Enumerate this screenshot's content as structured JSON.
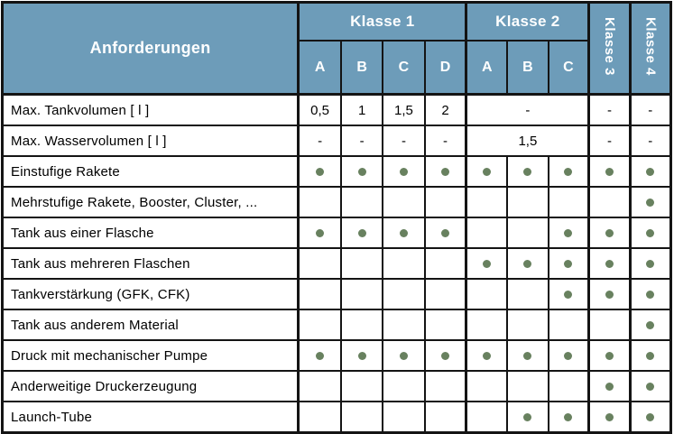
{
  "colors": {
    "header_bg": "#6D9CB9",
    "dot_green": "#68815F",
    "border": "#141414"
  },
  "table": {
    "corner_header": "Anforderungen",
    "groups": [
      {
        "label": "Klasse 1",
        "orientation": "horizontal",
        "subcols": [
          "A",
          "B",
          "C",
          "D"
        ]
      },
      {
        "label": "Klasse 2",
        "orientation": "horizontal",
        "subcols": [
          "A",
          "B",
          "C"
        ]
      },
      {
        "label": "Klasse 3",
        "orientation": "vertical",
        "subcols": []
      },
      {
        "label": "Klasse 4",
        "orientation": "vertical",
        "subcols": []
      }
    ],
    "rows": [
      {
        "label": "Max. Tankvolumen [ l ]",
        "cells": [
          {
            "v": "0,5"
          },
          {
            "v": "1"
          },
          {
            "v": "1,5"
          },
          {
            "v": "2"
          },
          {
            "v": "-",
            "span": 3
          },
          {
            "v": "-"
          },
          {
            "v": "-"
          }
        ]
      },
      {
        "label": "Max. Wasservolumen [ l ]",
        "cells": [
          {
            "v": "-"
          },
          {
            "v": "-"
          },
          {
            "v": "-"
          },
          {
            "v": "-"
          },
          {
            "v": "1,5",
            "span": 3
          },
          {
            "v": "-"
          },
          {
            "v": "-"
          }
        ]
      },
      {
        "label": "Einstufige Rakete",
        "cells": [
          {
            "dot": true
          },
          {
            "dot": true
          },
          {
            "dot": true
          },
          {
            "dot": true
          },
          {
            "dot": true
          },
          {
            "dot": true
          },
          {
            "dot": true
          },
          {
            "dot": true
          },
          {
            "dot": true
          }
        ]
      },
      {
        "label": "Mehrstufige Rakete, Booster, Cluster, ...",
        "cells": [
          {},
          {},
          {},
          {},
          {},
          {},
          {},
          {},
          {
            "dot": true
          }
        ]
      },
      {
        "label": "Tank aus einer Flasche",
        "cells": [
          {
            "dot": true
          },
          {
            "dot": true
          },
          {
            "dot": true
          },
          {
            "dot": true
          },
          {},
          {},
          {
            "dot": true
          },
          {
            "dot": true
          },
          {
            "dot": true
          }
        ]
      },
      {
        "label": "Tank aus mehreren Flaschen",
        "cells": [
          {},
          {},
          {},
          {},
          {
            "dot": true
          },
          {
            "dot": true
          },
          {
            "dot": true
          },
          {
            "dot": true
          },
          {
            "dot": true
          }
        ]
      },
      {
        "label": "Tankverstärkung (GFK, CFK)",
        "cells": [
          {},
          {},
          {},
          {},
          {},
          {},
          {
            "dot": true
          },
          {
            "dot": true
          },
          {
            "dot": true
          }
        ]
      },
      {
        "label": "Tank aus anderem Material",
        "cells": [
          {},
          {},
          {},
          {},
          {},
          {},
          {},
          {},
          {
            "dot": true
          }
        ]
      },
      {
        "label": "Druck mit mechanischer Pumpe",
        "cells": [
          {
            "dot": true
          },
          {
            "dot": true
          },
          {
            "dot": true
          },
          {
            "dot": true
          },
          {
            "dot": true
          },
          {
            "dot": true
          },
          {
            "dot": true
          },
          {
            "dot": true
          },
          {
            "dot": true
          }
        ]
      },
      {
        "label": "Anderweitige Druckerzeugung",
        "cells": [
          {},
          {},
          {},
          {},
          {},
          {},
          {},
          {
            "dot": true
          },
          {
            "dot": true
          }
        ]
      },
      {
        "label": "Launch-Tube",
        "cells": [
          {},
          {},
          {},
          {},
          {},
          {
            "dot": true
          },
          {
            "dot": true
          },
          {
            "dot": true
          },
          {
            "dot": true
          }
        ]
      }
    ]
  }
}
